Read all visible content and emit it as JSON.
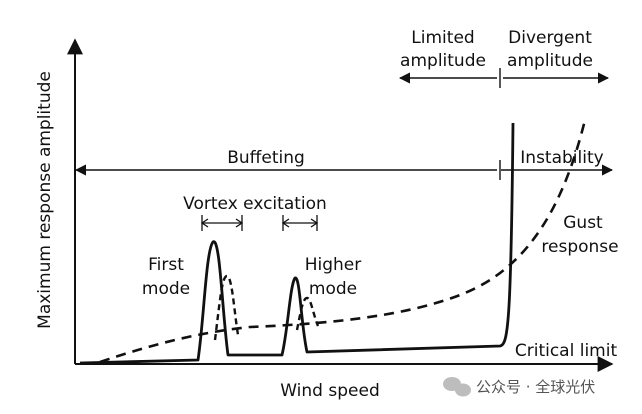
{
  "axes": {
    "x_label": "Wind speed",
    "y_label": "Maximum response amplitude"
  },
  "regions": {
    "buffeting": "Buffeting",
    "instability": "Instability",
    "limited_amplitude": [
      "Limited",
      "amplitude"
    ],
    "divergent_amplitude": [
      "Divergent",
      "amplitude"
    ],
    "vortex_excitation": "Vortex excitation"
  },
  "curve_labels": {
    "first_mode": [
      "First",
      "mode"
    ],
    "higher_mode": [
      "Higher",
      "mode"
    ],
    "gust_response": [
      "Gust",
      "response"
    ],
    "critical_limit": "Critical limit"
  },
  "watermark": {
    "text": "公众号 · 全球光伏"
  },
  "colors": {
    "line": "#111111",
    "background": "#ffffff"
  }
}
